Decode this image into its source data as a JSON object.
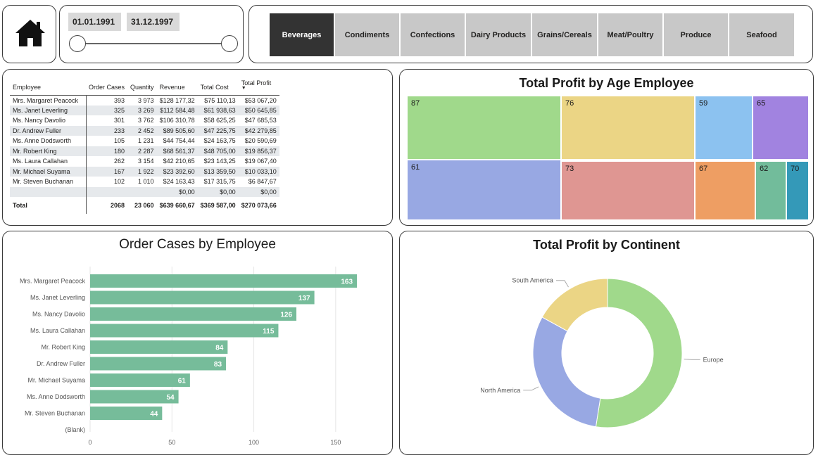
{
  "home": {
    "icon": "home-icon"
  },
  "date_slicer": {
    "start": "01.01.1991",
    "end": "31.12.1997"
  },
  "categories": [
    {
      "label": "Beverages",
      "active": true
    },
    {
      "label": "Condiments",
      "active": false
    },
    {
      "label": "Confections",
      "active": false
    },
    {
      "label": "Dairy Products",
      "active": false
    },
    {
      "label": "Grains/Cereals",
      "active": false
    },
    {
      "label": "Meat/Poultry",
      "active": false
    },
    {
      "label": "Produce",
      "active": false
    },
    {
      "label": "Seafood",
      "active": false
    }
  ],
  "table": {
    "headers": [
      "Employee",
      "Order Cases",
      "Quantity",
      "Revenue",
      "Total Cost",
      "Total Profit"
    ],
    "rows": [
      [
        "Mrs. Margaret Peacock",
        "393",
        "3 973",
        "$128 177,32",
        "$75 110,13",
        "$53 067,20"
      ],
      [
        "Ms. Janet Leverling",
        "325",
        "3 269",
        "$112 584,48",
        "$61 938,63",
        "$50 645,85"
      ],
      [
        "Ms. Nancy Davolio",
        "301",
        "3 762",
        "$106 310,78",
        "$58 625,25",
        "$47 685,53"
      ],
      [
        "Dr. Andrew Fuller",
        "233",
        "2 452",
        "$89 505,60",
        "$47 225,75",
        "$42 279,85"
      ],
      [
        "Ms. Anne Dodsworth",
        "105",
        "1 231",
        "$44 754,44",
        "$24 163,75",
        "$20 590,69"
      ],
      [
        "Mr. Robert King",
        "180",
        "2 287",
        "$68 561,37",
        "$48 705,00",
        "$19 856,37"
      ],
      [
        "Ms. Laura Callahan",
        "262",
        "3 154",
        "$42 210,65",
        "$23 143,25",
        "$19 067,40"
      ],
      [
        "Mr. Michael Suyama",
        "167",
        "1 922",
        "$23 392,60",
        "$13 359,50",
        "$10 033,10"
      ],
      [
        "Mr. Steven Buchanan",
        "102",
        "1 010",
        "$24 163,43",
        "$17 315,75",
        "$6 847,67"
      ],
      [
        "",
        "",
        "",
        "$0,00",
        "$0,00",
        "$0,00"
      ]
    ],
    "total": [
      "Total",
      "2068",
      "23 060",
      "$639 660,67",
      "$369 587,00",
      "$270 073,66"
    ]
  },
  "treemap": {
    "title": "Total Profit by Age Employee",
    "tiles": [
      {
        "label": "87",
        "color": "#a0d98b"
      },
      {
        "label": "76",
        "color": "#ebd585"
      },
      {
        "label": "59",
        "color": "#8cc2f0"
      },
      {
        "label": "65",
        "color": "#a183e0"
      },
      {
        "label": "61",
        "color": "#98a8e3"
      },
      {
        "label": "73",
        "color": "#df9692"
      },
      {
        "label": "67",
        "color": "#ee9e63"
      },
      {
        "label": "62",
        "color": "#72bc9b"
      },
      {
        "label": "70",
        "color": "#3499b8"
      }
    ]
  },
  "chart_data": [
    {
      "type": "bar",
      "title": "Order Cases by Employee",
      "orientation": "horizontal",
      "categories": [
        "Mrs. Margaret Peacock",
        "Ms. Janet Leverling",
        "Ms. Nancy Davolio",
        "Ms. Laura Callahan",
        "Mr. Robert King",
        "Dr. Andrew Fuller",
        "Mr. Michael Suyama",
        "Ms. Anne Dodsworth",
        "Mr. Steven Buchanan",
        "(Blank)"
      ],
      "values": [
        163,
        137,
        126,
        115,
        84,
        83,
        61,
        54,
        44,
        null
      ],
      "x_ticks": [
        "0",
        "50",
        "100",
        "150"
      ],
      "xlim": [
        0,
        172
      ],
      "grid": true,
      "color": "#76bc9a"
    },
    {
      "type": "pie",
      "donut": true,
      "title": "Total Profit by Continent",
      "categories": [
        "Europe",
        "North America",
        "South America"
      ],
      "values": [
        52.5,
        30.5,
        17.0
      ],
      "colors": [
        "#a0d98b",
        "#98a8e3",
        "#ebd585"
      ]
    }
  ]
}
